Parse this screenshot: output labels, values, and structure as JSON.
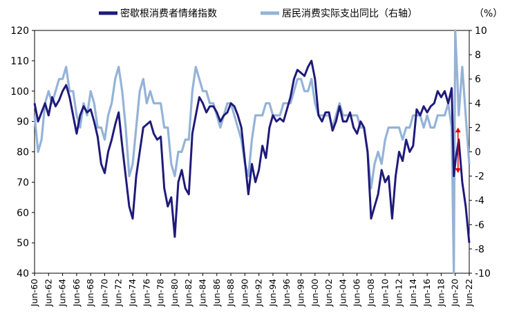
{
  "chart_data": {
    "type": "line",
    "title": "",
    "legend": {
      "placement": "top"
    },
    "axis": {
      "left": {
        "min": 40,
        "max": 120,
        "ticks": [
          40,
          50,
          60,
          70,
          80,
          90,
          100,
          110,
          120
        ]
      },
      "right": {
        "min": -10,
        "max": 10,
        "ticks": [
          -10,
          -8,
          -6,
          -4,
          -2,
          0,
          2,
          4,
          6,
          8,
          10
        ],
        "unit_label": "（%）"
      },
      "x": {
        "start": 1960.5,
        "end": 2022.5,
        "tick_labels": [
          "Jun-60",
          "Jun-62",
          "Jun-64",
          "Jun-66",
          "Jun-68",
          "Jun-70",
          "Jun-72",
          "Jun-74",
          "Jun-76",
          "Jun-78",
          "Jun-80",
          "Jun-82",
          "Jun-84",
          "Jun-86",
          "Jun-88",
          "Jun-90",
          "Jun-92",
          "Jun-94",
          "Jun-96",
          "Jun-98",
          "Jun-00",
          "Jun-02",
          "Jun-04",
          "Jun-06",
          "Jun-08",
          "Jun-10",
          "Jun-12",
          "Jun-14",
          "Jun-16",
          "Jun-18",
          "Jun-20",
          "Jun-22"
        ]
      }
    },
    "series": [
      {
        "name": "密歇根消费者情绪指数",
        "axis": "left",
        "color": "#1f1a7a",
        "x": [
          1960.5,
          1961.0,
          1961.5,
          1962.0,
          1962.5,
          1963.0,
          1963.5,
          1964.0,
          1964.5,
          1965.0,
          1965.5,
          1966.0,
          1966.5,
          1967.0,
          1967.5,
          1968.0,
          1968.5,
          1969.0,
          1969.5,
          1970.0,
          1970.5,
          1971.0,
          1971.5,
          1972.0,
          1972.5,
          1973.0,
          1973.5,
          1974.0,
          1974.5,
          1975.0,
          1975.5,
          1976.0,
          1976.5,
          1977.0,
          1977.5,
          1978.0,
          1978.5,
          1979.0,
          1979.5,
          1980.0,
          1980.5,
          1981.0,
          1981.5,
          1982.0,
          1982.5,
          1983.0,
          1983.5,
          1984.0,
          1984.5,
          1985.0,
          1985.5,
          1986.0,
          1986.5,
          1987.0,
          1987.5,
          1988.0,
          1988.5,
          1989.0,
          1989.5,
          1990.0,
          1990.5,
          1991.0,
          1991.5,
          1992.0,
          1992.5,
          1993.0,
          1993.5,
          1994.0,
          1994.5,
          1995.0,
          1995.5,
          1996.0,
          1996.5,
          1997.0,
          1997.5,
          1998.0,
          1998.5,
          1999.0,
          1999.5,
          2000.0,
          2000.5,
          2001.0,
          2001.5,
          2002.0,
          2002.5,
          2003.0,
          2003.5,
          2004.0,
          2004.5,
          2005.0,
          2005.5,
          2006.0,
          2006.5,
          2007.0,
          2007.5,
          2008.0,
          2008.5,
          2009.0,
          2009.5,
          2010.0,
          2010.5,
          2011.0,
          2011.5,
          2012.0,
          2012.5,
          2013.0,
          2013.5,
          2014.0,
          2014.5,
          2015.0,
          2015.5,
          2016.0,
          2016.5,
          2017.0,
          2017.5,
          2018.0,
          2018.5,
          2019.0,
          2019.5,
          2020.0,
          2020.3,
          2020.6,
          2021.0,
          2021.5,
          2022.0,
          2022.5
        ],
        "values": [
          96,
          90,
          93,
          96,
          92,
          98,
          95,
          97,
          100,
          102,
          98,
          92,
          86,
          92,
          95,
          93,
          94,
          90,
          85,
          76,
          73,
          80,
          84,
          89,
          93,
          82,
          72,
          62,
          58,
          72,
          80,
          88,
          89,
          90,
          86,
          84,
          85,
          68,
          62,
          65,
          52,
          70,
          74,
          68,
          66,
          86,
          92,
          98,
          96,
          93,
          95,
          95,
          93,
          90,
          92,
          93,
          96,
          95,
          92,
          88,
          77,
          66,
          76,
          70,
          74,
          82,
          78,
          88,
          92,
          90,
          91,
          90,
          94,
          98,
          104,
          107,
          106,
          105,
          108,
          110,
          104,
          92,
          90,
          93,
          93,
          87,
          90,
          95,
          90,
          90,
          93,
          88,
          86,
          90,
          88,
          80,
          58,
          62,
          66,
          74,
          70,
          72,
          58,
          72,
          80,
          77,
          84,
          80,
          82,
          94,
          92,
          95,
          93,
          95,
          96,
          100,
          98,
          100,
          96,
          101,
          72,
          78,
          84,
          70,
          62,
          50
        ]
      },
      {
        "name": "居民消费实际支出同比（右轴）",
        "axis": "right",
        "color": "#94b3d7",
        "x": [
          1960.5,
          1961.0,
          1961.5,
          1962.0,
          1962.5,
          1963.0,
          1963.5,
          1964.0,
          1964.5,
          1965.0,
          1965.5,
          1966.0,
          1966.5,
          1967.0,
          1967.5,
          1968.0,
          1968.5,
          1969.0,
          1969.5,
          1970.0,
          1970.5,
          1971.0,
          1971.5,
          1972.0,
          1972.5,
          1973.0,
          1973.5,
          1974.0,
          1974.5,
          1975.0,
          1975.5,
          1976.0,
          1976.5,
          1977.0,
          1977.5,
          1978.0,
          1978.5,
          1979.0,
          1979.5,
          1980.0,
          1980.5,
          1981.0,
          1981.5,
          1982.0,
          1982.5,
          1983.0,
          1983.5,
          1984.0,
          1984.5,
          1985.0,
          1985.5,
          1986.0,
          1986.5,
          1987.0,
          1987.5,
          1988.0,
          1988.5,
          1989.0,
          1989.5,
          1990.0,
          1990.5,
          1991.0,
          1991.5,
          1992.0,
          1992.5,
          1993.0,
          1993.5,
          1994.0,
          1994.5,
          1995.0,
          1995.5,
          1996.0,
          1996.5,
          1997.0,
          1997.5,
          1998.0,
          1998.5,
          1999.0,
          1999.5,
          2000.0,
          2000.5,
          2001.0,
          2001.5,
          2002.0,
          2002.5,
          2003.0,
          2003.5,
          2004.0,
          2004.5,
          2005.0,
          2005.5,
          2006.0,
          2006.5,
          2007.0,
          2007.5,
          2008.0,
          2008.5,
          2009.0,
          2009.5,
          2010.0,
          2010.5,
          2011.0,
          2011.5,
          2012.0,
          2012.5,
          2013.0,
          2013.5,
          2014.0,
          2014.5,
          2015.0,
          2015.5,
          2016.0,
          2016.5,
          2017.0,
          2017.5,
          2018.0,
          2018.5,
          2019.0,
          2019.5,
          2020.0,
          2020.3,
          2020.5,
          2020.8,
          2021.0,
          2021.5,
          2022.0,
          2022.5
        ],
        "values": [
          3,
          0,
          1,
          4,
          5,
          4,
          5,
          6,
          6,
          7,
          5,
          5,
          3,
          2,
          4,
          3,
          5,
          4,
          2,
          2,
          1,
          3,
          4,
          6,
          7,
          5,
          2,
          -2,
          -1,
          2,
          5,
          6,
          4,
          5,
          4,
          4,
          4,
          2,
          2,
          -1,
          -2,
          0,
          0,
          1,
          1,
          5,
          7,
          6,
          5,
          5,
          4,
          4,
          3,
          2,
          3,
          4,
          4,
          3,
          2,
          1,
          -1,
          -2,
          1,
          3,
          3,
          3,
          4,
          4,
          3,
          3,
          3,
          4,
          4,
          4,
          5,
          6,
          6,
          5,
          5,
          6,
          4,
          3,
          3,
          3,
          3,
          2,
          3,
          4,
          3,
          3,
          3,
          3,
          3,
          2,
          2,
          0,
          -3,
          -1,
          0,
          -1,
          1,
          2,
          2,
          2,
          2,
          1,
          2,
          2,
          3,
          3,
          3,
          2,
          3,
          2,
          2,
          3,
          3,
          3,
          4,
          2,
          -10,
          10,
          6,
          3,
          7,
          3,
          -1
        ]
      }
    ],
    "annotation": {
      "type": "double-arrow",
      "color": "#e00000",
      "axis": "left",
      "x": 2020.9,
      "y_from": 88,
      "y_to": 73
    }
  }
}
